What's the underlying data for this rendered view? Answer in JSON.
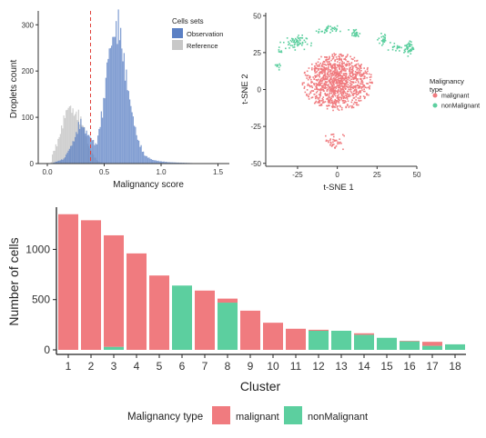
{
  "colors": {
    "observation": "#5b80c4",
    "reference": "#c8c8c8",
    "malignant": "#f07b7f",
    "nonMalignant": "#5ccf9f",
    "threshold_line": "#e0403a",
    "axis": "#333333"
  },
  "chart_data": [
    {
      "type": "histogram",
      "xlabel": "Malignancy score",
      "ylabel": "Droplets count",
      "xlim": [
        -0.08,
        1.6
      ],
      "ylim": [
        0,
        330
      ],
      "xticks": [
        "0.0",
        "0.5",
        "1.0",
        "1.5"
      ],
      "yticks": [
        "0",
        "100",
        "200",
        "300"
      ],
      "threshold": 0.38,
      "legend": {
        "title": "Cells sets",
        "placement": "top-right",
        "items": [
          "Observation",
          "Reference"
        ]
      },
      "series": [
        {
          "name": "Reference",
          "color_key": "reference",
          "bins": [
            [
              -0.02,
              0.08,
              3
            ],
            [
              0.02,
              0.06,
              20
            ],
            [
              0.06,
              0.11,
              45
            ],
            [
              0.1,
              0.15,
              80
            ],
            [
              0.14,
              0.17,
              110
            ],
            [
              0.17,
              0.21,
              125
            ],
            [
              0.2,
              0.26,
              108
            ],
            [
              0.24,
              0.29,
              105
            ],
            [
              0.29,
              0.34,
              80
            ],
            [
              0.34,
              0.37,
              40
            ],
            [
              0.38,
              0.42,
              18
            ],
            [
              0.42,
              0.46,
              5
            ],
            [
              0.46,
              0.5,
              1
            ]
          ]
        },
        {
          "name": "Observation",
          "color_key": "observation",
          "bins": [
            [
              0.0,
              0.1,
              2
            ],
            [
              0.08,
              0.2,
              10
            ],
            [
              0.12,
              0.34,
              50
            ],
            [
              0.22,
              0.35,
              90
            ],
            [
              0.3,
              0.36,
              70
            ],
            [
              0.36,
              0.42,
              52
            ],
            [
              0.41,
              0.44,
              38
            ],
            [
              0.45,
              0.54,
              135
            ],
            [
              0.5,
              0.55,
              230
            ],
            [
              0.55,
              0.62,
              280
            ],
            [
              0.6,
              0.66,
              300
            ],
            [
              0.64,
              0.66,
              250
            ],
            [
              0.69,
              0.74,
              145
            ],
            [
              0.74,
              0.77,
              92
            ],
            [
              0.77,
              0.81,
              52
            ],
            [
              0.81,
              0.89,
              18
            ],
            [
              0.89,
              0.95,
              8
            ],
            [
              0.95,
              1.02,
              5
            ],
            [
              1.02,
              1.1,
              3
            ],
            [
              1.1,
              1.2,
              2
            ],
            [
              1.2,
              1.35,
              1
            ],
            [
              1.35,
              1.55,
              0.5
            ]
          ]
        }
      ]
    },
    {
      "type": "scatter",
      "xlabel": "t-SNE 1",
      "ylabel": "t-SNE 2",
      "xlim": [
        -45,
        50
      ],
      "ylim": [
        -52,
        52
      ],
      "xticks": [
        "-25",
        "0",
        "25",
        "50"
      ],
      "yticks": [
        "-50",
        "-25",
        "0",
        "25",
        "50"
      ],
      "legend": {
        "title": "Malignancy\ntype",
        "placement": "right",
        "items": [
          "malignant",
          "nonMalignant"
        ]
      },
      "clusters": [
        {
          "name": "malignant",
          "cx": 0,
          "cy": 5,
          "sx": 17,
          "sy": 15,
          "n": 1100
        },
        {
          "name": "malignant",
          "cx": -2,
          "cy": -35,
          "sx": 4,
          "sy": 4,
          "n": 40
        },
        {
          "name": "nonMalignant",
          "cx": -27,
          "cy": 32,
          "sx": 5,
          "sy": 3,
          "n": 60
        },
        {
          "name": "nonMalignant",
          "cx": -6,
          "cy": 40,
          "sx": 4,
          "sy": 2,
          "n": 35
        },
        {
          "name": "nonMalignant",
          "cx": 11,
          "cy": 38,
          "sx": 2,
          "sy": 2,
          "n": 25
        },
        {
          "name": "nonMalignant",
          "cx": 29,
          "cy": 34,
          "sx": 2,
          "sy": 2.5,
          "n": 25
        },
        {
          "name": "nonMalignant",
          "cx": 37,
          "cy": 29,
          "sx": 2,
          "sy": 2,
          "n": 20
        },
        {
          "name": "nonMalignant",
          "cx": 45,
          "cy": 28,
          "sx": 2,
          "sy": 3,
          "n": 50
        },
        {
          "name": "nonMalignant",
          "cx": -36,
          "cy": 16,
          "sx": 1.5,
          "sy": 1.5,
          "n": 10
        },
        {
          "name": "nonMalignant",
          "cx": -36,
          "cy": 26,
          "sx": 1,
          "sy": 1,
          "n": 6
        }
      ]
    },
    {
      "type": "stacked-bar",
      "xlabel": "Cluster",
      "ylabel": "Number of cells",
      "ylim": [
        0,
        1420
      ],
      "yticks": [
        "0",
        "500",
        "1000"
      ],
      "categories": [
        "1",
        "2",
        "3",
        "4",
        "5",
        "6",
        "7",
        "8",
        "9",
        "10",
        "11",
        "12",
        "13",
        "14",
        "15",
        "16",
        "17",
        "18"
      ],
      "series": [
        {
          "name": "nonMalignant",
          "color_key": "nonMalignant",
          "values": [
            0,
            0,
            30,
            0,
            0,
            640,
            0,
            470,
            0,
            0,
            0,
            190,
            190,
            150,
            120,
            85,
            40,
            55
          ]
        },
        {
          "name": "malignant",
          "color_key": "malignant",
          "values": [
            1350,
            1290,
            1110,
            960,
            740,
            0,
            590,
            40,
            390,
            270,
            210,
            10,
            0,
            15,
            0,
            5,
            40,
            0
          ]
        }
      ],
      "legend": {
        "title": "Malignancy type",
        "placement": "bottom",
        "items": [
          "malignant",
          "nonMalignant"
        ]
      }
    }
  ]
}
